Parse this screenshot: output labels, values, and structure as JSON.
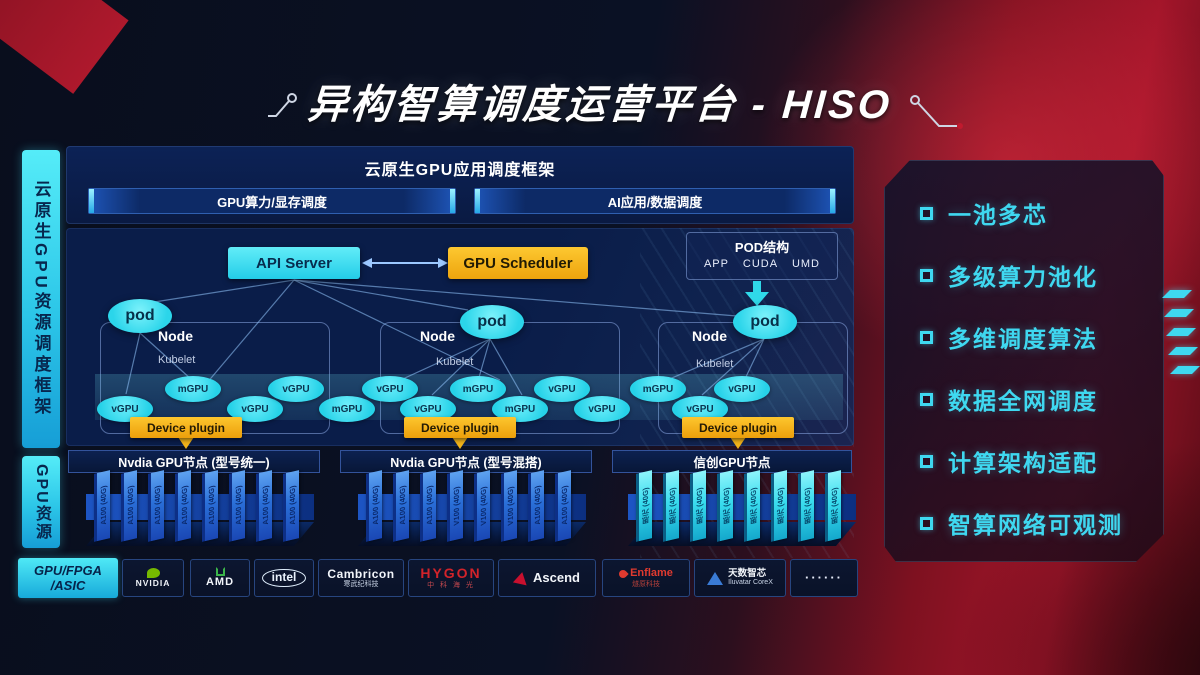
{
  "title": {
    "text": "异构智算调度运营平台 - HISO"
  },
  "sidebar": {
    "framework": "云原生GPU资源调度框架",
    "gpu_resource": "GPU资源",
    "hardware_line1": "GPU/FPGA",
    "hardware_line2": "/ASIC"
  },
  "app_panel": {
    "title": "云原生GPU应用调度框架",
    "bar_left": "GPU算力/显存调度",
    "bar_right": "AI应用/数据调度"
  },
  "control": {
    "api_server": "API Server",
    "gpu_scheduler": "GPU Scheduler",
    "pod_struct_title": "POD结构",
    "pod_struct_items": [
      "APP",
      "CUDA",
      "UMD"
    ]
  },
  "nodes": [
    {
      "pod": "pod",
      "label": "Node",
      "kubelet": "Kubelet",
      "device_plugin": "Device plugin",
      "footer": "Nvdia GPU节点 (型号统一)",
      "cards": [
        "A100 (40G)",
        "A100 (40G)",
        "A100 (40G)",
        "A100 (40G)",
        "A100 (40G)",
        "A100 (40G)",
        "A100 (40G)",
        "A100 (40G)"
      ]
    },
    {
      "pod": "pod",
      "label": "Node",
      "kubelet": "Kubelet",
      "device_plugin": "Device plugin",
      "footer": "Nvdia GPU节点 (型号混搭)",
      "cards": [
        "A100 (40G)",
        "A100 (40G)",
        "A100 (40G)",
        "V100 (40G)",
        "V100 (40G)",
        "V100 (40G)",
        "A100 (40G)",
        "A100 (40G)"
      ]
    },
    {
      "pod": "pod",
      "label": "Node",
      "kubelet": "Kubelet",
      "device_plugin": "Device plugin",
      "footer": "信创GPU节点",
      "cards": [
        "思元 (40G)",
        "思元 (40G)",
        "思元 (40G)",
        "思元 (40G)",
        "思元 (40G)",
        "思元 (40G)",
        "思元 (40G)",
        "思元 (40G)"
      ]
    }
  ],
  "gpu_band": {
    "items": [
      {
        "label": "vGPU",
        "row": "low"
      },
      {
        "label": "mGPU",
        "row": "high"
      },
      {
        "label": "vGPU",
        "row": "low"
      },
      {
        "label": "vGPU",
        "row": "high"
      },
      {
        "label": "mGPU",
        "row": "low"
      },
      {
        "label": "vGPU",
        "row": "high"
      },
      {
        "label": "vGPU",
        "row": "low"
      },
      {
        "label": "mGPU",
        "row": "high"
      },
      {
        "label": "mGPU",
        "row": "low"
      },
      {
        "label": "vGPU",
        "row": "high"
      },
      {
        "label": "vGPU",
        "row": "low"
      },
      {
        "label": "mGPU",
        "row": "high"
      },
      {
        "label": "vGPU",
        "row": "low"
      },
      {
        "label": "vGPU",
        "row": "high"
      }
    ]
  },
  "highlights": {
    "items": [
      "一池多芯",
      "多级算力池化",
      "多维调度算法",
      "数据全网调度",
      "计算架构适配",
      "智算网络可观测"
    ]
  },
  "vendors": {
    "nvidia": "NVIDIA",
    "amd": "AMD",
    "intel": "intel",
    "cambricon": {
      "name": "Cambricon",
      "sub": "寒武纪科技"
    },
    "hygon": {
      "name": "HYGON",
      "sub": "中 科 海 光"
    },
    "ascend": "Ascend",
    "enflame": {
      "name": "Enflame",
      "sub": "燧原科技"
    },
    "iluvatar": {
      "name": "天数智芯",
      "sub": "Iluvatar CoreX"
    },
    "more": "······"
  },
  "colors": {
    "accent_cyan": "#3ee6f2",
    "accent_yellow": "#f5b517",
    "panel_navy": "#0a1e4c",
    "card_blue": "#2f7de0",
    "card_cyan": "#39dcee",
    "bg_red": "#a3152a",
    "nvidia_green": "#76b900",
    "hygon_red": "#d2232a",
    "ascend_red": "#c8102e",
    "enflame_red": "#e03a2f",
    "iluvatar_blue": "#3a7bd5"
  }
}
